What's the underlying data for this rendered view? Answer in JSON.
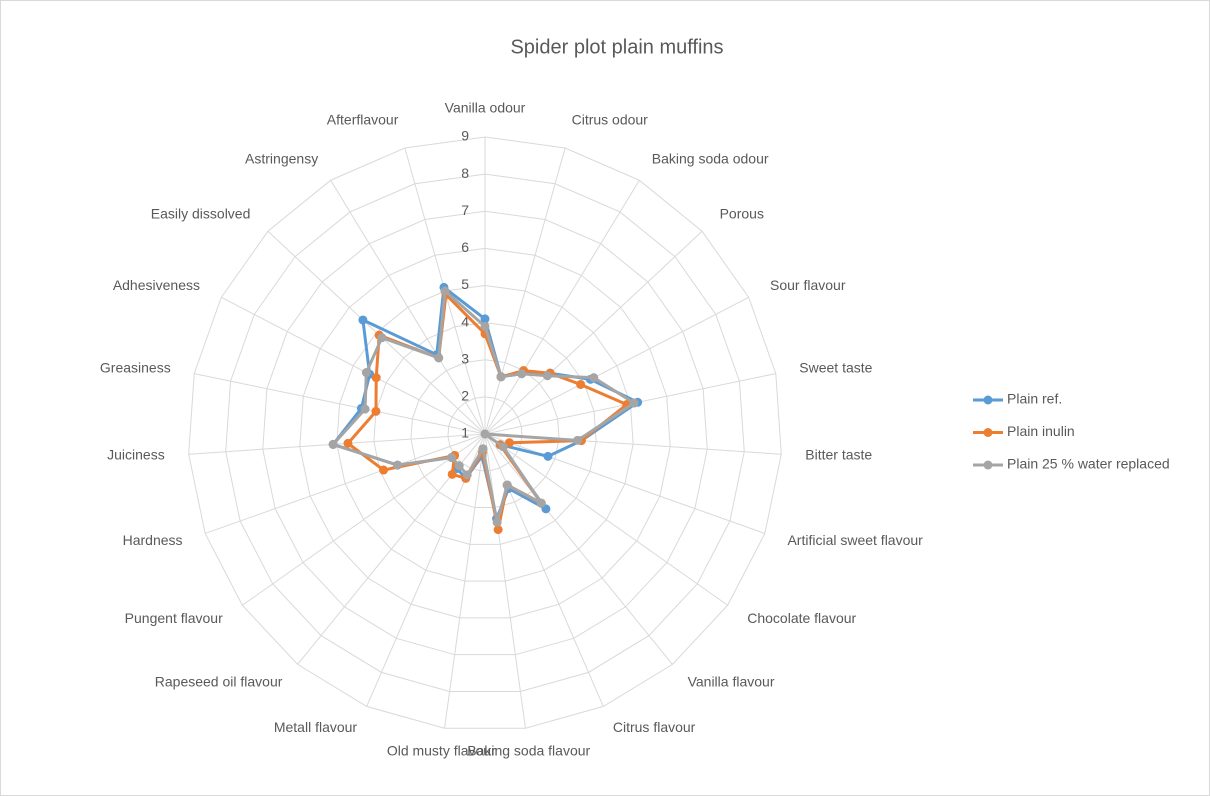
{
  "chart_data": {
    "type": "radar",
    "title": "Spider plot plain muffins",
    "categories": [
      "Vanilla odour",
      "Citrus odour",
      "Baking soda odour",
      "Porous",
      "Sour flavour",
      "Sweet taste",
      "Bitter taste",
      "Artificial sweet flavour",
      "Chocolate flavour",
      "Vanilla flavour",
      "Citrus flavour",
      "Baking soda flavour",
      "Old musty flavour",
      "Metall flavour",
      "Rapeseed oil flavour",
      "Pungent flavour",
      "Hardness",
      "Juiciness",
      "Greasiness",
      "Adhesiveness",
      "Easily dissolved",
      "Astringensy",
      "Afterflavour"
    ],
    "series": [
      {
        "name": "Plain ref.",
        "color": "#5b9bd5",
        "values": [
          4.1,
          2.6,
          2.9,
          3.4,
          4.2,
          5.2,
          3.6,
          2.8,
          1.5,
          3.6,
          2.6,
          3.3,
          1.6,
          2.3,
          2.2,
          2.1,
          3.5,
          5.1,
          4.4,
          4.5,
          5.5,
          3.5,
          5.1
        ]
      },
      {
        "name": "Plain inulin",
        "color": "#ed7d31",
        "values": [
          3.7,
          2.6,
          3.0,
          3.4,
          3.9,
          4.9,
          3.6,
          1.7,
          1.5,
          3.4,
          2.5,
          3.6,
          1.5,
          2.3,
          2.4,
          2.0,
          3.9,
          4.7,
          4.0,
          4.3,
          4.9,
          3.4,
          4.9
        ]
      },
      {
        "name": "Plain 25 % water replaced",
        "color": "#a5a5a5",
        "values": [
          3.9,
          2.6,
          2.9,
          3.3,
          4.3,
          5.1,
          3.5,
          1.0,
          1.6,
          3.4,
          2.5,
          3.4,
          1.4,
          2.2,
          2.1,
          2.1,
          3.5,
          5.1,
          4.3,
          4.6,
          4.8,
          3.4,
          5.0
        ]
      }
    ],
    "ylim": [
      1,
      9
    ],
    "yticks": [
      1,
      2,
      3,
      4,
      5,
      6,
      7,
      8,
      9
    ],
    "grid": true,
    "legend": "right"
  }
}
